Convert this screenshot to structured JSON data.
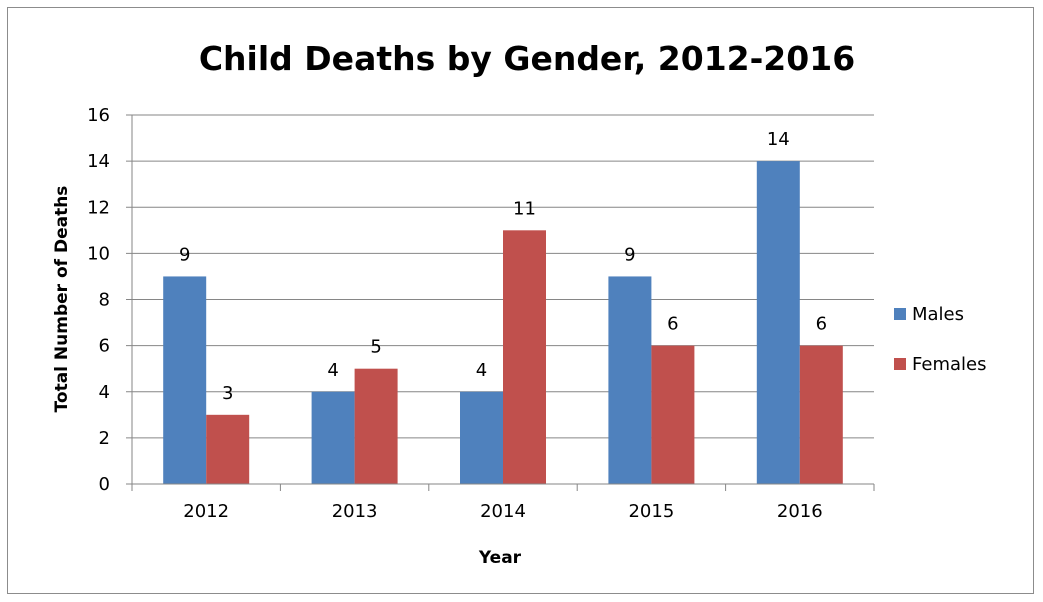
{
  "chart_data": {
    "type": "bar",
    "title": "Child Deaths by Gender, 2012-2016",
    "xlabel": "Year",
    "ylabel": "Total Number of Deaths",
    "categories": [
      "2012",
      "2013",
      "2014",
      "2015",
      "2016"
    ],
    "series": [
      {
        "name": "Males",
        "values": [
          9,
          4,
          4,
          9,
          14
        ],
        "color": "#4f81bd"
      },
      {
        "name": "Females",
        "values": [
          3,
          5,
          11,
          6,
          6
        ],
        "color": "#c0504d"
      }
    ],
    "ylim": [
      0,
      16
    ],
    "yticks": [
      0,
      2,
      4,
      6,
      8,
      10,
      12,
      14,
      16
    ],
    "grid": true,
    "legend": "right",
    "data_labels": true
  }
}
